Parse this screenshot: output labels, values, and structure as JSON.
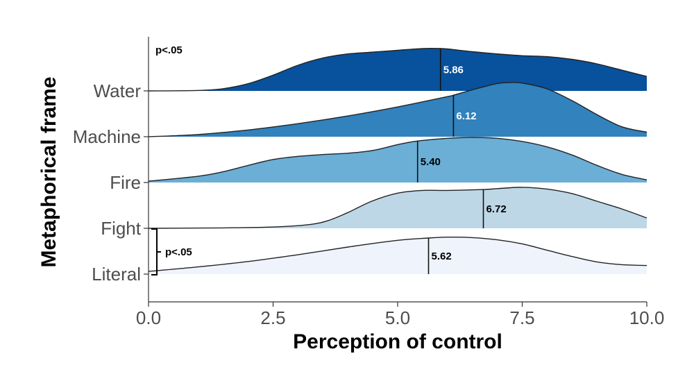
{
  "chart_data": {
    "type": "area",
    "subtype": "ridgeline",
    "xlabel": "Perception of control",
    "ylabel": "Metaphorical frame",
    "xlim": [
      0,
      10
    ],
    "x_ticks": [
      "0.0",
      "2.5",
      "5.0",
      "7.5",
      "10.0"
    ],
    "x_tick_values": [
      0,
      2.5,
      5,
      7.5,
      10
    ],
    "categories": [
      "Literal",
      "Fight",
      "Fire",
      "Machine",
      "Water"
    ],
    "grid": false,
    "series": [
      {
        "name": "Literal",
        "color": "#eff3fb",
        "median": 5.62,
        "median_label": "5.62",
        "label_color": "#000000",
        "density": [
          [
            0,
            0.06
          ],
          [
            1,
            0.16
          ],
          [
            2,
            0.28
          ],
          [
            3,
            0.43
          ],
          [
            4,
            0.6
          ],
          [
            5,
            0.75
          ],
          [
            5.62,
            0.8
          ],
          [
            6,
            0.82
          ],
          [
            6.5,
            0.81
          ],
          [
            7,
            0.76
          ],
          [
            7.5,
            0.67
          ],
          [
            8,
            0.53
          ],
          [
            8.5,
            0.39
          ],
          [
            9,
            0.27
          ],
          [
            9.5,
            0.21
          ],
          [
            10,
            0.19
          ]
        ]
      },
      {
        "name": "Fight",
        "color": "#bdd7e7",
        "median": 6.72,
        "median_label": "6.72",
        "label_color": "#000000",
        "density": [
          [
            0,
            0
          ],
          [
            1.5,
            0.01
          ],
          [
            2.5,
            0.03
          ],
          [
            3.2,
            0.08
          ],
          [
            3.6,
            0.17
          ],
          [
            4,
            0.35
          ],
          [
            4.5,
            0.61
          ],
          [
            5,
            0.78
          ],
          [
            5.5,
            0.84
          ],
          [
            6,
            0.84
          ],
          [
            6.72,
            0.86
          ],
          [
            7,
            0.88
          ],
          [
            7.5,
            0.91
          ],
          [
            8,
            0.87
          ],
          [
            8.5,
            0.77
          ],
          [
            9,
            0.6
          ],
          [
            9.5,
            0.43
          ],
          [
            10,
            0.23
          ]
        ]
      },
      {
        "name": "Fire",
        "color": "#6baed6",
        "median": 5.4,
        "median_label": "5.40",
        "label_color": "#000000",
        "density": [
          [
            0,
            0.03
          ],
          [
            1,
            0.14
          ],
          [
            1.5,
            0.24
          ],
          [
            2,
            0.38
          ],
          [
            2.5,
            0.51
          ],
          [
            3,
            0.58
          ],
          [
            3.5,
            0.62
          ],
          [
            4,
            0.65
          ],
          [
            4.5,
            0.71
          ],
          [
            5,
            0.84
          ],
          [
            5.4,
            0.92
          ],
          [
            6,
            0.98
          ],
          [
            6.5,
            1.0
          ],
          [
            7,
            0.98
          ],
          [
            7.5,
            0.91
          ],
          [
            8,
            0.79
          ],
          [
            8.5,
            0.61
          ],
          [
            9,
            0.38
          ],
          [
            9.5,
            0.18
          ],
          [
            10,
            0.06
          ]
        ]
      },
      {
        "name": "Machine",
        "color": "#3182bd",
        "median": 6.12,
        "median_label": "6.12",
        "label_color": "#ffffff",
        "density": [
          [
            0,
            0
          ],
          [
            1,
            0.05
          ],
          [
            2,
            0.15
          ],
          [
            3,
            0.29
          ],
          [
            4,
            0.46
          ],
          [
            5,
            0.66
          ],
          [
            6,
            0.89
          ],
          [
            6.12,
            0.92
          ],
          [
            6.5,
            1.04
          ],
          [
            7,
            1.18
          ],
          [
            7.25,
            1.2
          ],
          [
            7.5,
            1.19
          ],
          [
            8,
            1.06
          ],
          [
            8.5,
            0.8
          ],
          [
            9,
            0.49
          ],
          [
            9.5,
            0.22
          ],
          [
            10,
            0.1
          ]
        ]
      },
      {
        "name": "Water",
        "color": "#08519c",
        "median": 5.86,
        "median_label": "5.86",
        "label_color": "#ffffff",
        "density": [
          [
            0,
            0
          ],
          [
            1,
            0.01
          ],
          [
            1.5,
            0.05
          ],
          [
            2,
            0.16
          ],
          [
            2.5,
            0.35
          ],
          [
            3,
            0.57
          ],
          [
            3.5,
            0.73
          ],
          [
            4,
            0.82
          ],
          [
            4.5,
            0.86
          ],
          [
            5,
            0.9
          ],
          [
            5.5,
            0.94
          ],
          [
            5.86,
            0.94
          ],
          [
            6,
            0.93
          ],
          [
            6.5,
            0.87
          ],
          [
            7,
            0.82
          ],
          [
            7.5,
            0.78
          ],
          [
            8,
            0.76
          ],
          [
            8.5,
            0.7
          ],
          [
            9,
            0.6
          ],
          [
            9.5,
            0.46
          ],
          [
            10,
            0.32
          ]
        ]
      }
    ],
    "annotations": [
      {
        "text": "p<.05",
        "target": "Water"
      },
      {
        "text": "p<.05",
        "target": "Fight vs Literal"
      }
    ]
  }
}
